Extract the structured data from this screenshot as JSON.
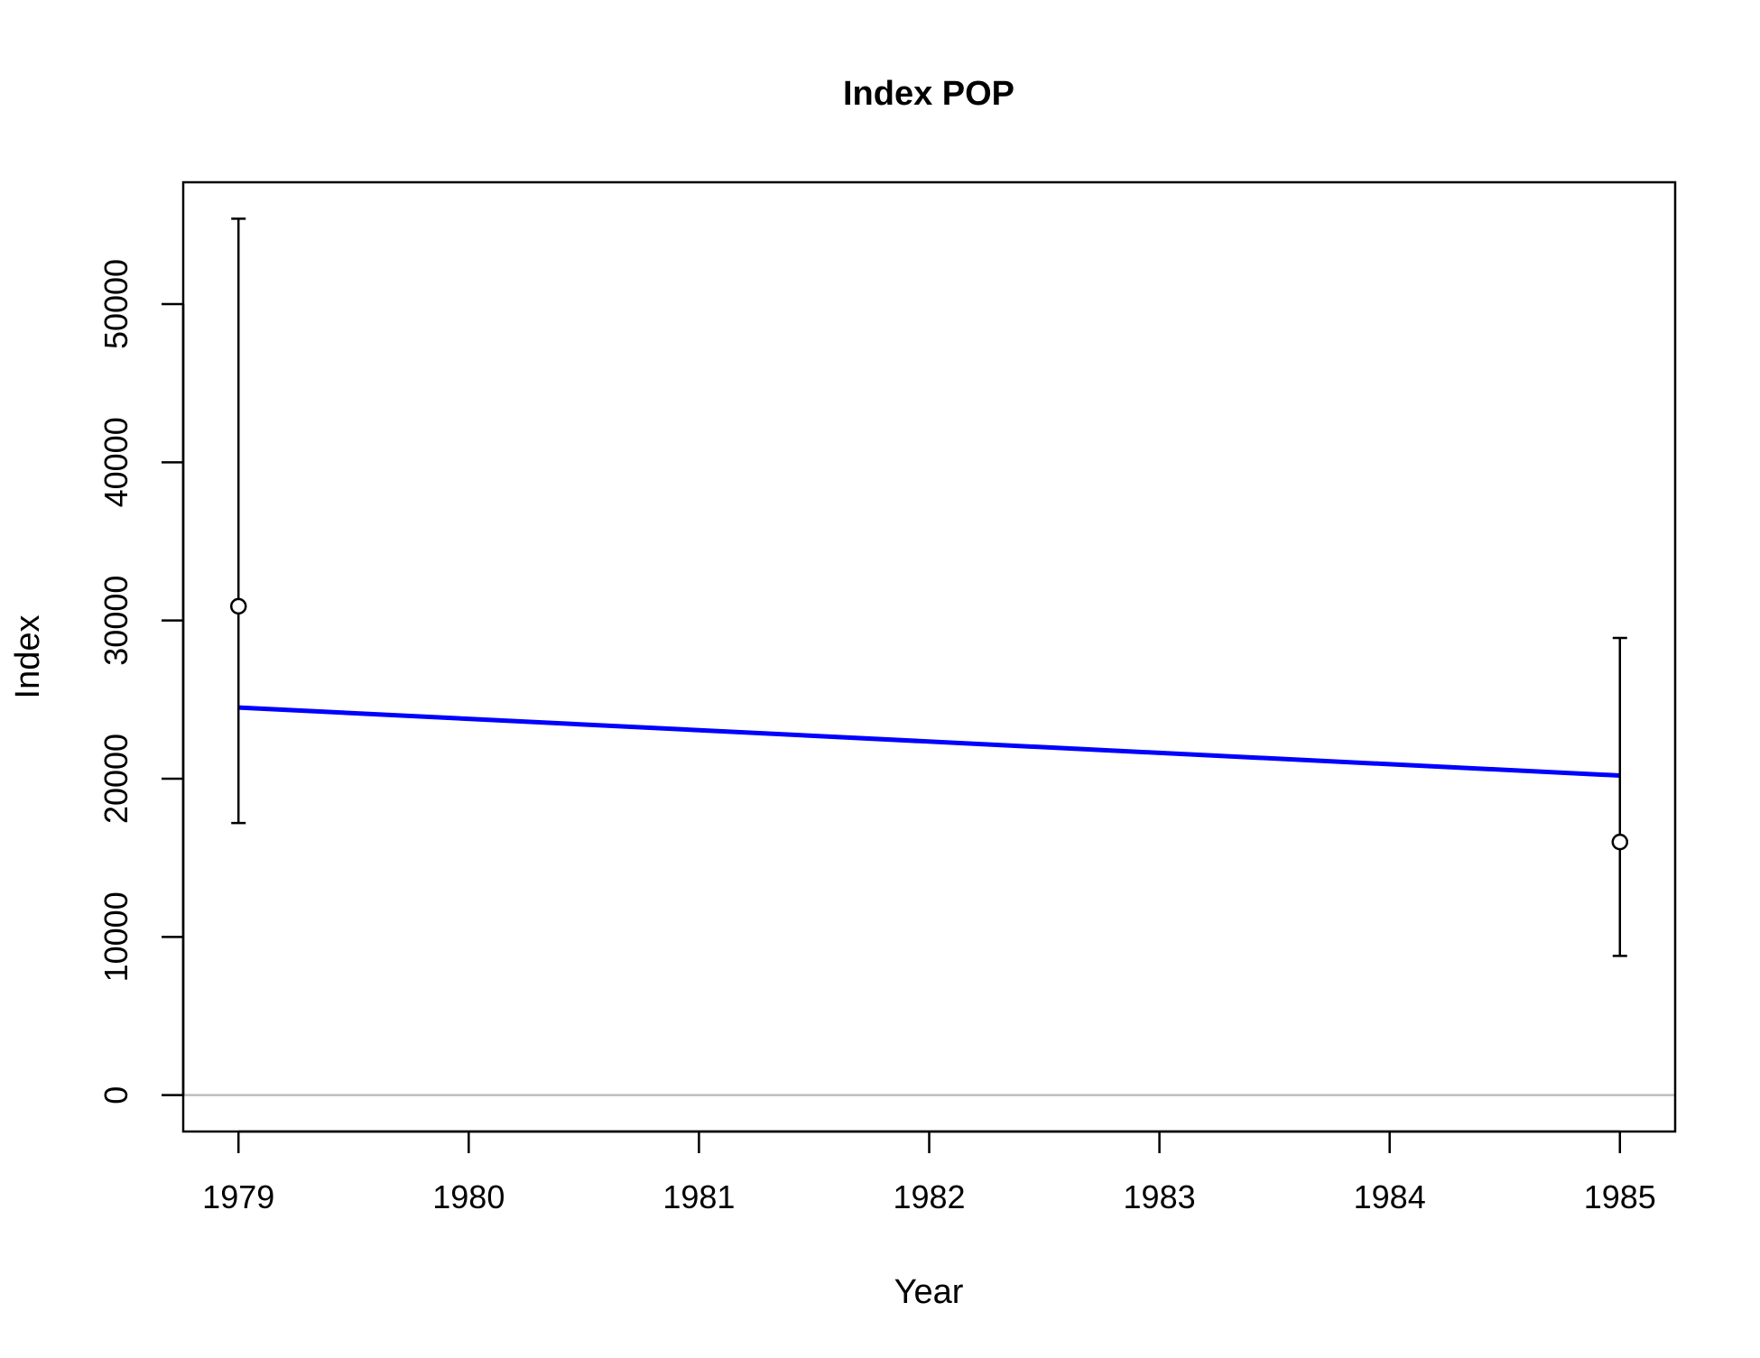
{
  "chart_data": {
    "type": "scatter",
    "title": "Index POP",
    "xlabel": "Year",
    "ylabel": "Index",
    "xlim": [
      1978.76,
      1985.24
    ],
    "ylim": [
      -2300,
      57700
    ],
    "x_ticks": [
      1979,
      1980,
      1981,
      1982,
      1983,
      1984,
      1985
    ],
    "x_tick_labels": [
      "1979",
      "1980",
      "1981",
      "1982",
      "1983",
      "1984",
      "1985"
    ],
    "y_ticks": [
      0,
      10000,
      20000,
      30000,
      40000,
      50000
    ],
    "y_tick_labels": [
      "0",
      "10000",
      "20000",
      "30000",
      "40000",
      "50000"
    ],
    "series": [
      {
        "type": "points_with_error_bars",
        "marker": "open-circle",
        "color": "#000000",
        "points": [
          {
            "x": 1979,
            "y": 30900,
            "lower": 17200,
            "upper": 55400
          },
          {
            "x": 1985,
            "y": 16000,
            "lower": 8800,
            "upper": 28900
          }
        ]
      },
      {
        "type": "line",
        "color": "#0000ff",
        "x": [
          1979,
          1985
        ],
        "y": [
          24500,
          20200
        ]
      }
    ],
    "reference_line": {
      "y": 0,
      "color": "#bebebe"
    },
    "grid": false,
    "legend": "none"
  }
}
